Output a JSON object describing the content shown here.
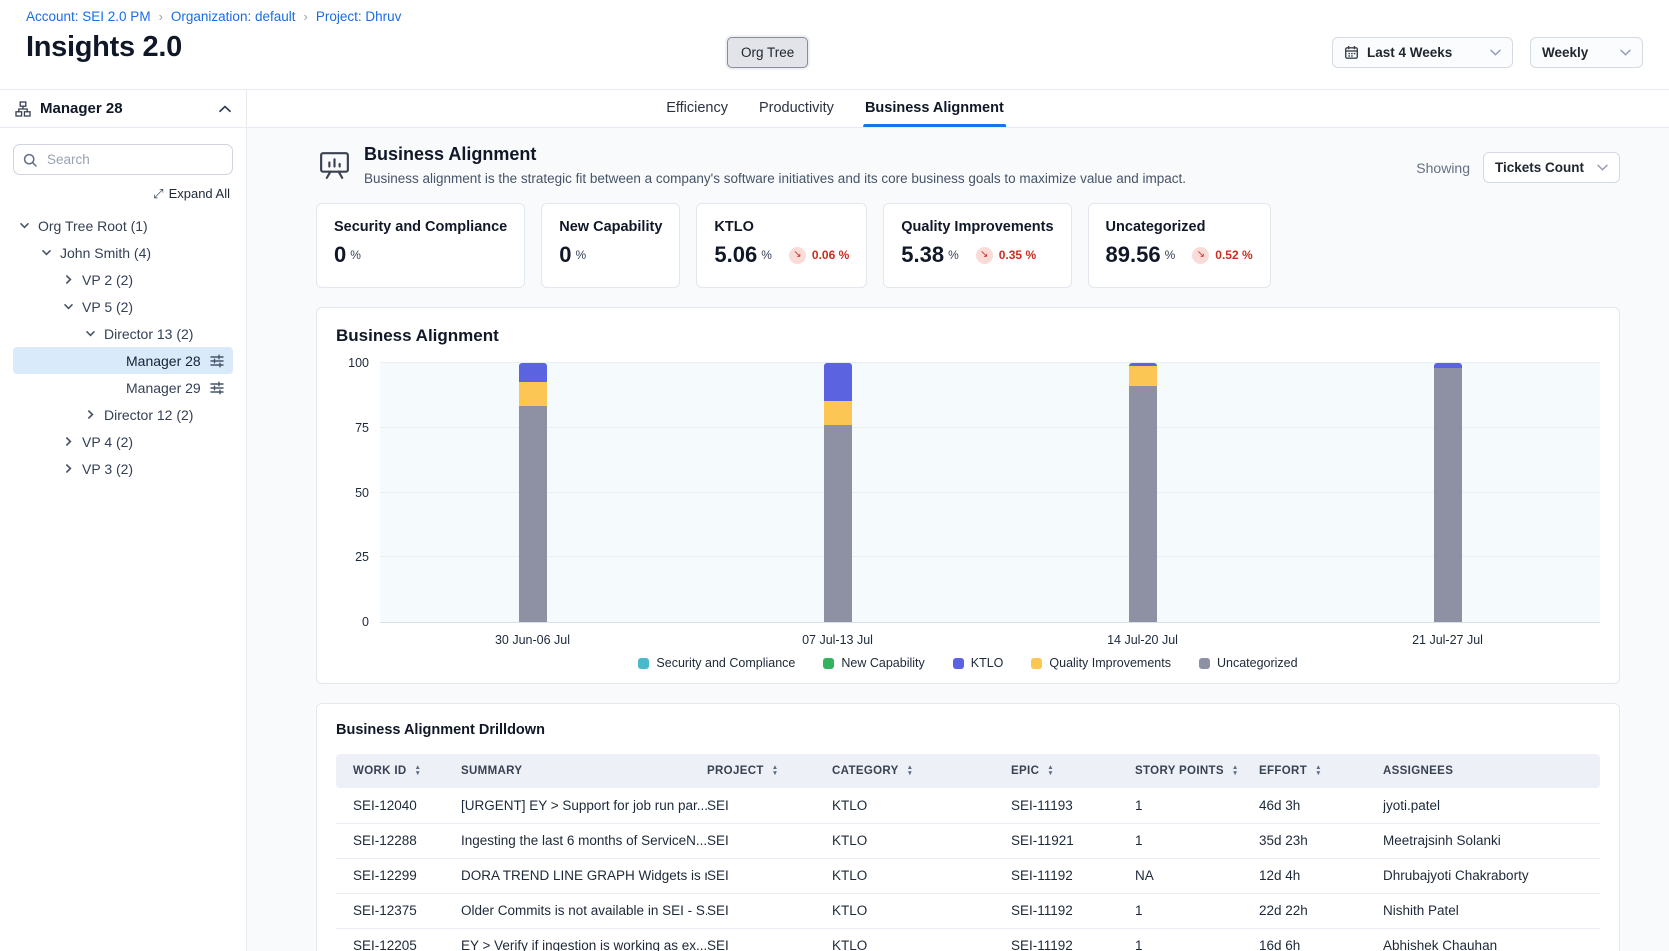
{
  "breadcrumb": {
    "items": [
      "Account: SEI 2.0 PM",
      "Organization: default",
      "Project: Dhruv"
    ]
  },
  "header": {
    "title": "Insights 2.0",
    "org_tree_button": "Org Tree",
    "date_range": "Last 4 Weeks",
    "granularity": "Weekly"
  },
  "sidebar": {
    "header": "Manager 28",
    "search_placeholder": "Search",
    "expand_all": "Expand All",
    "tree": [
      {
        "label": "Org Tree Root (1)",
        "level": 0,
        "chevron": "down",
        "selected": false,
        "settings_icon": false
      },
      {
        "label": "John Smith (4)",
        "level": 1,
        "chevron": "down",
        "selected": false,
        "settings_icon": false
      },
      {
        "label": "VP 2 (2)",
        "level": 2,
        "chevron": "right",
        "selected": false,
        "settings_icon": false
      },
      {
        "label": "VP 5 (2)",
        "level": 2,
        "chevron": "down",
        "selected": false,
        "settings_icon": false
      },
      {
        "label": "Director 13 (2)",
        "level": 3,
        "chevron": "down",
        "selected": false,
        "settings_icon": false
      },
      {
        "label": "Manager 28",
        "level": 4,
        "chevron": "none",
        "selected": true,
        "settings_icon": true
      },
      {
        "label": "Manager 29",
        "level": 4,
        "chevron": "none",
        "selected": false,
        "settings_icon": true
      },
      {
        "label": "Director 12 (2)",
        "level": 3,
        "chevron": "right",
        "selected": false,
        "settings_icon": false
      },
      {
        "label": "VP 4 (2)",
        "level": 2,
        "chevron": "right",
        "selected": false,
        "settings_icon": false
      },
      {
        "label": "VP 3 (2)",
        "level": 2,
        "chevron": "right",
        "selected": false,
        "settings_icon": false
      }
    ]
  },
  "tabs": [
    {
      "label": "Efficiency",
      "active": false
    },
    {
      "label": "Productivity",
      "active": false
    },
    {
      "label": "Business Alignment",
      "active": true
    }
  ],
  "section": {
    "title": "Business Alignment",
    "description": "Business alignment is the strategic fit between a company's software initiatives and its core business goals to maximize value and impact.",
    "showing_label": "Showing",
    "showing_value": "Tickets Count"
  },
  "metric_cards": [
    {
      "title": "Security and Compliance",
      "value": "0",
      "unit": "%",
      "delta": null,
      "delta_direction": null
    },
    {
      "title": "New Capability",
      "value": "0",
      "unit": "%",
      "delta": null,
      "delta_direction": null
    },
    {
      "title": "KTLO",
      "value": "5.06",
      "unit": "%",
      "delta": "0.06 %",
      "delta_direction": "down"
    },
    {
      "title": "Quality Improvements",
      "value": "5.38",
      "unit": "%",
      "delta": "0.35 %",
      "delta_direction": "down"
    },
    {
      "title": "Uncategorized",
      "value": "89.56",
      "unit": "%",
      "delta": "0.52 %",
      "delta_direction": "down"
    }
  ],
  "chart_data": {
    "type": "bar",
    "stacked": true,
    "title": "Business Alignment",
    "categories": [
      "30 Jun-06 Jul",
      "07 Jul-13 Jul",
      "14 Jul-20 Jul",
      "21 Jul-27 Jul"
    ],
    "series": [
      {
        "name": "Security and Compliance",
        "color": "#4ab9c9",
        "values": [
          0,
          0,
          0,
          0
        ]
      },
      {
        "name": "New Capability",
        "color": "#35b25e",
        "values": [
          0,
          0,
          0,
          0
        ]
      },
      {
        "name": "KTLO",
        "color": "#5b63e0",
        "values": [
          7.5,
          14.5,
          1,
          2
        ]
      },
      {
        "name": "Quality Improvements",
        "color": "#fbc653",
        "values": [
          9,
          9.5,
          8,
          0
        ]
      },
      {
        "name": "Uncategorized",
        "color": "#8d91a3",
        "values": [
          83.5,
          76,
          91,
          98
        ]
      }
    ],
    "ylim": [
      0,
      100
    ],
    "yticks": [
      0,
      25,
      50,
      75,
      100
    ],
    "ylabel": "",
    "xlabel": "",
    "grid": true,
    "legend_position": "bottom"
  },
  "drilldown": {
    "title": "Business Alignment Drilldown",
    "columns": [
      {
        "label": "WORK ID",
        "sortable": true
      },
      {
        "label": "SUMMARY",
        "sortable": false
      },
      {
        "label": "PROJECT",
        "sortable": true
      },
      {
        "label": "CATEGORY",
        "sortable": true
      },
      {
        "label": "EPIC",
        "sortable": true
      },
      {
        "label": "STORY POINTS",
        "sortable": true
      },
      {
        "label": "EFFORT",
        "sortable": true
      },
      {
        "label": "ASSIGNEES",
        "sortable": false
      }
    ],
    "rows": [
      [
        "SEI-12040",
        "[URGENT] EY > Support for job run par...",
        "SEI",
        "KTLO",
        "SEI-11193",
        "1",
        "46d 3h",
        "jyoti.patel"
      ],
      [
        "SEI-12288",
        "Ingesting the last 6 months of ServiceN...",
        "SEI",
        "KTLO",
        "SEI-11921",
        "1",
        "35d 23h",
        "Meetrajsinh Solanki"
      ],
      [
        "SEI-12299",
        "DORA TREND LINE GRAPH Widgets is n...",
        "SEI",
        "KTLO",
        "SEI-11192",
        "NA",
        "12d 4h",
        "Dhrubajyoti Chakraborty"
      ],
      [
        "SEI-12375",
        "Older Commits is not available in SEI - S...",
        "SEI",
        "KTLO",
        "SEI-11192",
        "1",
        "22d 22h",
        "Nishith Patel"
      ],
      [
        "SEI-12205",
        "EY > Verify if ingestion is working as ex...",
        "SEI",
        "KTLO",
        "SEI-11192",
        "1",
        "16d 6h",
        "Abhishek Chauhan"
      ]
    ]
  },
  "icons": {
    "breadcrumb_separator": "›",
    "expand_all": "⤢",
    "trend_down": "↘",
    "sort_asc": "▲",
    "sort_desc": "▼"
  }
}
